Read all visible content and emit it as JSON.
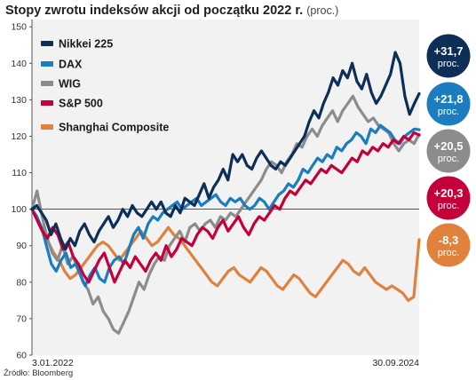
{
  "title": "Stopy zwrotu indeksów akcji od początku 2022 r.",
  "title_unit": "(proc.)",
  "source": "Źródło: Bloomberg",
  "chart_data": {
    "type": "line",
    "title": "Stopy zwrotu indeksów akcji od początku 2022 r.",
    "unit": "(proc.)",
    "ylim": [
      60,
      152
    ],
    "yticks": [
      60,
      70,
      80,
      90,
      100,
      110,
      120,
      130,
      140,
      150
    ],
    "x_start_label": "3.01.2022",
    "x_end_label": "30.09.2024",
    "baseline": 100,
    "grid": false,
    "legend_position": "top-left",
    "series": [
      {
        "name": "Nikkei 225",
        "color": "#0d2f57",
        "end_label": "+31,7",
        "end_unit": "proc.",
        "values": [
          100,
          101,
          99,
          97,
          93,
          96,
          92,
          89,
          92,
          90,
          94,
          96,
          93,
          91,
          94,
          96,
          98,
          95,
          97,
          100,
          98,
          101,
          99,
          98,
          100,
          102,
          100,
          102,
          99,
          98,
          101,
          99,
          103,
          102,
          101,
          104,
          107,
          103,
          106,
          108,
          111,
          108,
          115,
          113,
          115,
          112,
          111,
          114,
          116,
          114,
          112,
          111,
          113,
          112,
          114,
          116,
          118,
          120,
          124,
          127,
          125,
          129,
          132,
          136,
          134,
          138,
          136,
          140,
          135,
          133,
          137,
          132,
          129,
          131,
          134,
          137,
          143,
          140,
          131,
          126,
          129,
          131.7
        ]
      },
      {
        "name": "DAX",
        "color": "#1b7dbf",
        "end_label": "+21,8",
        "end_unit": "proc.",
        "values": [
          100,
          98,
          95,
          90,
          85,
          83,
          86,
          88,
          84,
          85,
          82,
          79,
          82,
          84,
          81,
          80,
          84,
          86,
          87,
          85,
          89,
          93,
          95,
          92,
          96,
          98,
          97,
          99,
          100,
          101,
          102,
          100,
          101,
          102,
          103,
          101,
          102,
          103,
          104,
          102,
          101,
          103,
          102,
          103,
          101,
          100,
          101,
          103,
          102,
          100,
          102,
          104,
          105,
          107,
          106,
          108,
          111,
          110,
          112,
          114,
          113,
          115,
          114,
          117,
          116,
          118,
          119,
          121,
          120,
          118,
          122,
          121,
          123,
          122,
          121,
          119,
          118,
          120,
          121,
          122,
          121.8
        ]
      },
      {
        "name": "WIG",
        "color": "#8c8c8c",
        "end_label": "+20,5",
        "end_unit": "proc.",
        "values": [
          100,
          105,
          98,
          92,
          88,
          86,
          90,
          85,
          87,
          84,
          80,
          78,
          74,
          76,
          72,
          70,
          67,
          66,
          69,
          72,
          76,
          80,
          78,
          82,
          85,
          87,
          86,
          90,
          92,
          94,
          91,
          95,
          96,
          94,
          96,
          97,
          95,
          98,
          97,
          99,
          98,
          100,
          102,
          104,
          106,
          108,
          111,
          113,
          112,
          110,
          113,
          115,
          118,
          117,
          120,
          122,
          120,
          123,
          125,
          127,
          124,
          127,
          129,
          131,
          128,
          126,
          124,
          125,
          123,
          122,
          121,
          118,
          116,
          118,
          119,
          118,
          120.5
        ]
      },
      {
        "name": "S&P 500",
        "color": "#c4003a",
        "end_label": "+20,3",
        "end_unit": "proc.",
        "values": [
          100,
          97,
          94,
          92,
          95,
          93,
          89,
          91,
          87,
          85,
          82,
          80,
          83,
          86,
          88,
          84,
          80,
          83,
          86,
          84,
          87,
          85,
          83,
          86,
          88,
          86,
          90,
          87,
          89,
          92,
          91,
          90,
          93,
          95,
          94,
          92,
          95,
          97,
          94,
          96,
          98,
          95,
          93,
          96,
          98,
          97,
          99,
          101,
          100,
          103,
          105,
          104,
          106,
          108,
          107,
          109,
          111,
          110,
          112,
          111,
          110,
          112,
          114,
          113,
          116,
          115,
          117,
          116,
          118,
          117,
          119,
          118,
          120,
          119,
          121,
          120.3
        ]
      },
      {
        "name": "Shanghai Composite",
        "color": "#e0823d",
        "end_label": "-8,3",
        "end_unit": "proc.",
        "values": [
          100,
          97,
          94,
          91,
          88,
          86,
          83,
          81,
          82,
          84,
          86,
          88,
          90,
          91,
          90,
          88,
          86,
          88,
          90,
          92,
          94,
          92,
          90,
          91,
          93,
          95,
          93,
          92,
          90,
          88,
          86,
          84,
          82,
          80,
          79,
          81,
          83,
          84,
          82,
          81,
          80,
          82,
          84,
          83,
          81,
          79,
          78,
          80,
          82,
          81,
          79,
          77,
          76,
          78,
          80,
          82,
          84,
          86,
          85,
          83,
          82,
          84,
          82,
          80,
          79,
          78,
          79,
          78,
          77,
          75,
          76,
          91.7
        ]
      }
    ]
  }
}
